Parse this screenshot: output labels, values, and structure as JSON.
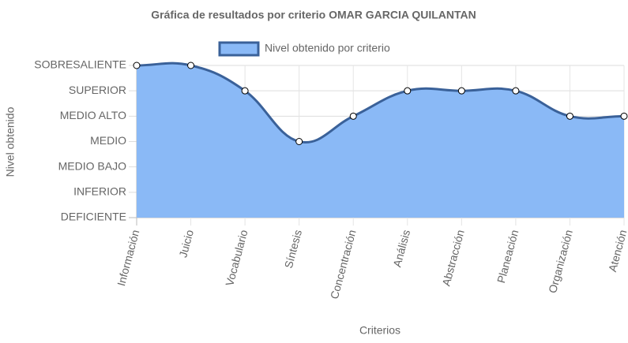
{
  "chart_data": {
    "type": "area",
    "title": "Gráfica de resultados por criterio OMAR GARCIA QUILANTAN",
    "x_label": "Criterios",
    "y_label": "Nivel obtenido",
    "categories": [
      "Información",
      "Juicio",
      "Vocabulario",
      "Síntesis",
      "Concentración",
      "Análisis",
      "Abstracción",
      "Planeación",
      "Organización",
      "Atención"
    ],
    "series": [
      {
        "name": "Nivel obtenido por criterio",
        "color": "#3a6199",
        "fill_color": "#8ab9f6",
        "values": [
          6,
          6,
          5,
          3,
          4,
          5,
          5,
          5,
          4,
          4
        ]
      }
    ],
    "ylim": [
      0,
      6
    ],
    "yticks": [
      {
        "value": 0,
        "label": "DEFICIENTE"
      },
      {
        "value": 1,
        "label": "INFERIOR"
      },
      {
        "value": 2,
        "label": "MEDIO BAJO"
      },
      {
        "value": 3,
        "label": "MEDIO"
      },
      {
        "value": 4,
        "label": "MEDIO ALTO"
      },
      {
        "value": 5,
        "label": "SUPERIOR"
      },
      {
        "value": 6,
        "label": "SOBRESALIENTE"
      }
    ],
    "grid": true
  }
}
